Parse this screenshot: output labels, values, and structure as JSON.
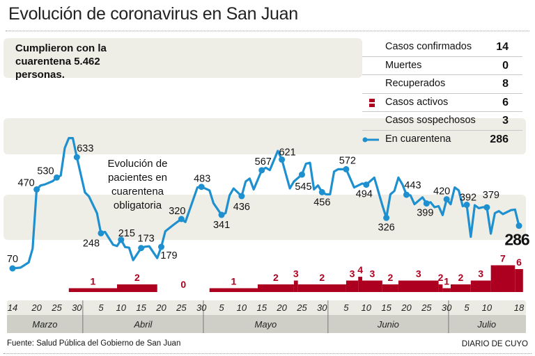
{
  "header": {
    "title": "Evolución de coronavirus en San Juan",
    "summary_lines": [
      "Cumplieron con la",
      "cuarentena  5.462",
      "personas."
    ]
  },
  "stats": [
    {
      "label": "Casos confirmados",
      "value": "14",
      "icon": ""
    },
    {
      "label": "Muertes",
      "value": "0",
      "icon": ""
    },
    {
      "label": "Recuperados",
      "value": "8",
      "icon": ""
    },
    {
      "label": "Casos activos",
      "value": "6",
      "icon": "red-bar-legend-icon"
    },
    {
      "label": "Casos sospechosos",
      "value": "3",
      "icon": ""
    },
    {
      "label": "En cuarentena",
      "value": "286",
      "icon": "blue-line-legend-icon"
    }
  ],
  "footer": {
    "source": "Fuente: Salud Pública del Gobierno de San Juan",
    "brand": "DIARIO DE CUYO"
  },
  "colors": {
    "line": "#1e90cf",
    "bars": "#ad0020",
    "band": "#eeede6",
    "axis_top": "#ebebe3",
    "axis_months": "#cfcfc8"
  },
  "chart_data": {
    "type": "line",
    "annotation": "Evolución de pacientes en cuarentena obligatoria",
    "grid": false,
    "x_ticks": [
      {
        "date": "03-14",
        "label": "14"
      },
      {
        "date": "03-20",
        "label": "20"
      },
      {
        "date": "03-25",
        "label": "25"
      },
      {
        "date": "03-30",
        "label": "30"
      },
      {
        "date": "04-05",
        "label": "5"
      },
      {
        "date": "04-10",
        "label": "10"
      },
      {
        "date": "04-15",
        "label": "15"
      },
      {
        "date": "04-20",
        "label": "20"
      },
      {
        "date": "04-25",
        "label": "25"
      },
      {
        "date": "04-30",
        "label": "30"
      },
      {
        "date": "05-05",
        "label": "5"
      },
      {
        "date": "05-10",
        "label": "10"
      },
      {
        "date": "05-15",
        "label": "15"
      },
      {
        "date": "05-20",
        "label": "20"
      },
      {
        "date": "05-25",
        "label": "25"
      },
      {
        "date": "05-30",
        "label": "30"
      },
      {
        "date": "06-05",
        "label": "5"
      },
      {
        "date": "06-10",
        "label": "10"
      },
      {
        "date": "06-15",
        "label": "15"
      },
      {
        "date": "06-20",
        "label": "20"
      },
      {
        "date": "06-25",
        "label": "25"
      },
      {
        "date": "06-30",
        "label": "30"
      },
      {
        "date": "07-05",
        "label": "5"
      },
      {
        "date": "07-10",
        "label": "10"
      },
      {
        "date": "07-18",
        "label": "18"
      }
    ],
    "months": [
      {
        "label": "Marzo",
        "from": "03-12",
        "to": "04-01"
      },
      {
        "label": "Abril",
        "from": "04-01",
        "to": "05-01"
      },
      {
        "label": "Mayo",
        "from": "05-01",
        "to": "06-01"
      },
      {
        "label": "Junio",
        "from": "06-01",
        "to": "07-01"
      },
      {
        "label": "Julio",
        "from": "07-01",
        "to": "07-20"
      }
    ],
    "series": [
      {
        "name": "En cuarentena",
        "points": [
          [
            "03-14",
            70
          ],
          [
            "03-16",
            74
          ],
          [
            "03-18",
            100
          ],
          [
            "03-19",
            170
          ],
          [
            "03-20",
            470
          ],
          [
            "03-21",
            490
          ],
          [
            "03-22",
            495
          ],
          [
            "03-24",
            512
          ],
          [
            "03-25",
            530
          ],
          [
            "03-26",
            540
          ],
          [
            "03-27",
            680
          ],
          [
            "03-28",
            730
          ],
          [
            "03-29",
            730
          ],
          [
            "03-30",
            633
          ],
          [
            "04-01",
            455
          ],
          [
            "04-02",
            435
          ],
          [
            "04-04",
            350
          ],
          [
            "04-05",
            248
          ],
          [
            "04-06",
            255
          ],
          [
            "04-08",
            190
          ],
          [
            "04-09",
            183
          ],
          [
            "04-10",
            215
          ],
          [
            "04-11",
            178
          ],
          [
            "04-12",
            175
          ],
          [
            "04-13",
            112
          ],
          [
            "04-15",
            173
          ],
          [
            "04-16",
            180
          ],
          [
            "04-17",
            182
          ],
          [
            "04-19",
            122
          ],
          [
            "04-20",
            179
          ],
          [
            "04-21",
            258
          ],
          [
            "04-23",
            290
          ],
          [
            "04-25",
            320
          ],
          [
            "04-26",
            305
          ],
          [
            "04-29",
            480
          ],
          [
            "04-30",
            483
          ],
          [
            "05-02",
            465
          ],
          [
            "05-03",
            400
          ],
          [
            "05-05",
            341
          ],
          [
            "05-06",
            350
          ],
          [
            "05-07",
            440
          ],
          [
            "05-08",
            475
          ],
          [
            "05-10",
            436
          ],
          [
            "05-11",
            510
          ],
          [
            "05-12",
            525
          ],
          [
            "05-13",
            470
          ],
          [
            "05-15",
            567
          ],
          [
            "05-16",
            580
          ],
          [
            "05-17",
            568
          ],
          [
            "05-19",
            665
          ],
          [
            "05-20",
            621
          ],
          [
            "05-22",
            475
          ],
          [
            "05-23",
            510
          ],
          [
            "05-25",
            545
          ],
          [
            "05-26",
            600
          ],
          [
            "05-27",
            605
          ],
          [
            "05-28",
            470
          ],
          [
            "05-29",
            490
          ],
          [
            "05-30",
            456
          ],
          [
            "05-31",
            445
          ],
          [
            "06-01",
            445
          ],
          [
            "06-02",
            560
          ],
          [
            "06-03",
            572
          ],
          [
            "06-05",
            572
          ],
          [
            "06-07",
            480
          ],
          [
            "06-09",
            500
          ],
          [
            "06-10",
            494
          ],
          [
            "06-12",
            530
          ],
          [
            "06-14",
            390
          ],
          [
            "06-15",
            326
          ],
          [
            "06-16",
            445
          ],
          [
            "06-17",
            462
          ],
          [
            "06-18",
            530
          ],
          [
            "06-19",
            495
          ],
          [
            "06-20",
            443
          ],
          [
            "06-21",
            440
          ],
          [
            "06-22",
            395
          ],
          [
            "06-24",
            430
          ],
          [
            "06-25",
            399
          ],
          [
            "06-26",
            405
          ],
          [
            "06-27",
            380
          ],
          [
            "06-28",
            385
          ],
          [
            "06-29",
            340
          ],
          [
            "06-30",
            420
          ],
          [
            "07-01",
            395
          ],
          [
            "07-02",
            480
          ],
          [
            "07-03",
            465
          ],
          [
            "07-04",
            385
          ],
          [
            "07-05",
            392
          ],
          [
            "07-06",
            230
          ],
          [
            "07-07",
            390
          ],
          [
            "07-08",
            375
          ],
          [
            "07-09",
            380
          ],
          [
            "07-10",
            379
          ],
          [
            "07-11",
            246
          ],
          [
            "07-12",
            350
          ],
          [
            "07-13",
            360
          ],
          [
            "07-14",
            345
          ],
          [
            "07-16",
            365
          ],
          [
            "07-17",
            368
          ],
          [
            "07-18",
            286
          ]
        ],
        "labeled": [
          [
            "03-14",
            70
          ],
          [
            "03-20",
            470
          ],
          [
            "03-25",
            530
          ],
          [
            "03-30",
            633
          ],
          [
            "04-05",
            248
          ],
          [
            "04-10",
            215
          ],
          [
            "04-15",
            173
          ],
          [
            "04-20",
            179
          ],
          [
            "04-25",
            320
          ],
          [
            "04-30",
            483
          ],
          [
            "05-05",
            341
          ],
          [
            "05-10",
            436
          ],
          [
            "05-15",
            567
          ],
          [
            "05-20",
            621
          ],
          [
            "05-25",
            545
          ],
          [
            "05-30",
            456
          ],
          [
            "06-05",
            572
          ],
          [
            "06-10",
            494
          ],
          [
            "06-15",
            326
          ],
          [
            "06-20",
            443
          ],
          [
            "06-25",
            399
          ],
          [
            "06-30",
            420
          ],
          [
            "07-05",
            392
          ],
          [
            "07-10",
            379
          ],
          [
            "07-18",
            286
          ]
        ]
      },
      {
        "name": "Casos activos",
        "type": "step-bar",
        "segments": [
          [
            "03-28",
            "04-09",
            1
          ],
          [
            "04-09",
            "04-19",
            2
          ],
          [
            "04-19",
            "05-02",
            0
          ],
          [
            "05-02",
            "05-14",
            1
          ],
          [
            "05-14",
            "05-23",
            2
          ],
          [
            "05-23",
            "05-24",
            3
          ],
          [
            "05-24",
            "06-05",
            2
          ],
          [
            "06-05",
            "06-08",
            3
          ],
          [
            "06-08",
            "06-09",
            4
          ],
          [
            "06-09",
            "06-14",
            3
          ],
          [
            "06-14",
            "06-18",
            2
          ],
          [
            "06-18",
            "06-28",
            3
          ],
          [
            "06-28",
            "06-29",
            2
          ],
          [
            "06-29",
            "07-01",
            1
          ],
          [
            "07-01",
            "07-06",
            2
          ],
          [
            "07-06",
            "07-11",
            3
          ],
          [
            "07-11",
            "07-17",
            7
          ],
          [
            "07-17",
            "07-19",
            6
          ]
        ]
      }
    ]
  }
}
